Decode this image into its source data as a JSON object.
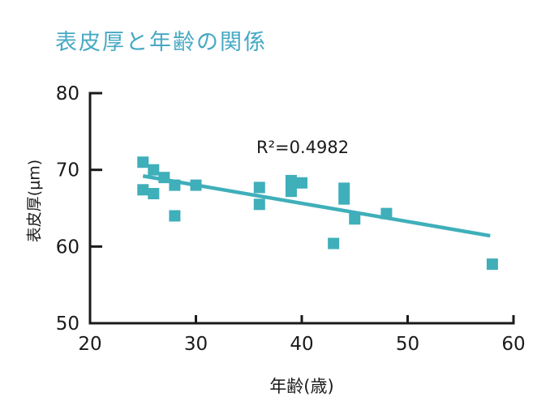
{
  "window": {
    "background": "#ffffff"
  },
  "title": {
    "text": "表皮厚と年齢の関係",
    "color": "#47a9c4"
  },
  "annotation": {
    "text": "R²=0.4982"
  },
  "chart_data": {
    "type": "scatter",
    "title": "表皮厚と年齢の関係",
    "xlabel": "年齢(歳)",
    "ylabel": "表皮厚(μm)",
    "xlim": [
      20,
      60
    ],
    "ylim": [
      50,
      80
    ],
    "xticks": [
      20,
      30,
      40,
      50,
      60
    ],
    "yticks": [
      50,
      60,
      70,
      80
    ],
    "grid": false,
    "legend": "none",
    "marker_shape": "square",
    "marker_color": "#3fafba",
    "axis_color": "#1a1a1a",
    "r_squared": 0.4982,
    "points": [
      {
        "x": 25,
        "y": 71
      },
      {
        "x": 26,
        "y": 70
      },
      {
        "x": 27,
        "y": 69
      },
      {
        "x": 28,
        "y": 68
      },
      {
        "x": 30,
        "y": 68
      },
      {
        "x": 25,
        "y": 67.4
      },
      {
        "x": 26,
        "y": 66.9
      },
      {
        "x": 28,
        "y": 64
      },
      {
        "x": 36,
        "y": 67.7
      },
      {
        "x": 36,
        "y": 65.5
      },
      {
        "x": 39,
        "y": 68.6
      },
      {
        "x": 39,
        "y": 67.2
      },
      {
        "x": 40,
        "y": 68.3
      },
      {
        "x": 44,
        "y": 67.6
      },
      {
        "x": 44,
        "y": 66.2
      },
      {
        "x": 45,
        "y": 63.6
      },
      {
        "x": 48,
        "y": 64.3
      },
      {
        "x": 43,
        "y": 60.4
      },
      {
        "x": 58,
        "y": 57.7
      }
    ],
    "trendline": {
      "x1": 25,
      "y1": 69.2,
      "x2": 57.8,
      "y2": 61.4
    }
  }
}
